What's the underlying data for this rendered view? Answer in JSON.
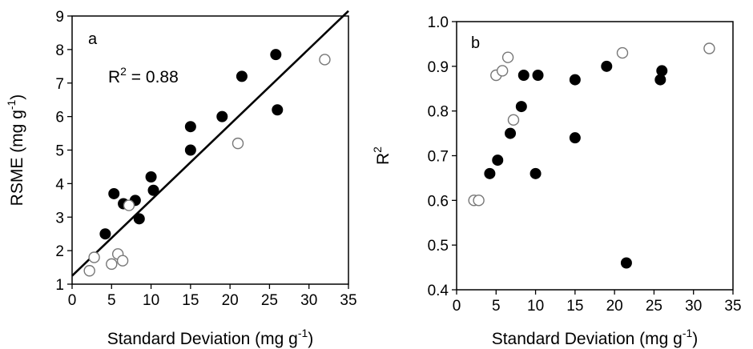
{
  "chart_data": [
    {
      "type": "scatter",
      "panel_label": "a",
      "xlabel": "Standard Deviation (mg g",
      "xlabel_sup": "-1",
      "xlabel_end": ")",
      "ylabel": "RSME (mg g",
      "ylabel_sup": "-1",
      "ylabel_end": ")",
      "xlim": [
        0,
        35
      ],
      "ylim": [
        1,
        9
      ],
      "x_ticks": [
        0,
        5,
        10,
        15,
        20,
        25,
        30,
        35
      ],
      "y_ticks": [
        1,
        2,
        3,
        4,
        5,
        6,
        7,
        8,
        9
      ],
      "annotation": {
        "text": "R",
        "sup": "2",
        "rest": " = 0.88"
      },
      "fit_line": {
        "x": [
          0,
          35
        ],
        "y": [
          1.25,
          9.15
        ]
      },
      "grid": false,
      "series": [
        {
          "marker": "filled",
          "x": [
            4.2,
            5.3,
            6.5,
            8.0,
            8.5,
            10.0,
            10.3,
            15.0,
            15.0,
            19.0,
            21.5,
            25.8,
            26.0
          ],
          "y": [
            2.5,
            3.7,
            3.4,
            3.5,
            2.95,
            4.2,
            3.8,
            5.7,
            5.0,
            6.0,
            7.2,
            7.85,
            6.2
          ]
        },
        {
          "marker": "open",
          "x": [
            2.2,
            2.8,
            5.0,
            5.8,
            6.4,
            7.2,
            21.0,
            32.0
          ],
          "y": [
            1.4,
            1.8,
            1.6,
            1.9,
            1.7,
            3.35,
            5.2,
            7.7
          ]
        }
      ]
    },
    {
      "type": "scatter",
      "panel_label": "b",
      "xlabel": "Standard Deviation (mg g",
      "xlabel_sup": "-1",
      "xlabel_end": ")",
      "ylabel": "R",
      "ylabel_sup": "2",
      "ylabel_end": "",
      "xlim": [
        0,
        35
      ],
      "ylim": [
        0.4,
        1.0
      ],
      "x_ticks": [
        0,
        5,
        10,
        15,
        20,
        25,
        30,
        35
      ],
      "y_ticks": [
        "0.4",
        "0.5",
        "0.6",
        "0.7",
        "0.8",
        "0.9",
        "1.0"
      ],
      "grid": false,
      "series": [
        {
          "marker": "filled",
          "x": [
            4.2,
            5.2,
            6.8,
            8.2,
            8.5,
            10.0,
            10.3,
            15.0,
            15.0,
            19.0,
            21.5,
            25.8,
            26.0
          ],
          "y": [
            0.66,
            0.69,
            0.75,
            0.81,
            0.88,
            0.66,
            0.88,
            0.87,
            0.74,
            0.9,
            0.46,
            0.87,
            0.89
          ]
        },
        {
          "marker": "open",
          "x": [
            2.2,
            2.8,
            5.0,
            5.8,
            6.5,
            7.2,
            21.0,
            32.0
          ],
          "y": [
            0.6,
            0.6,
            0.88,
            0.89,
            0.92,
            0.78,
            0.93,
            0.94
          ]
        }
      ]
    }
  ]
}
